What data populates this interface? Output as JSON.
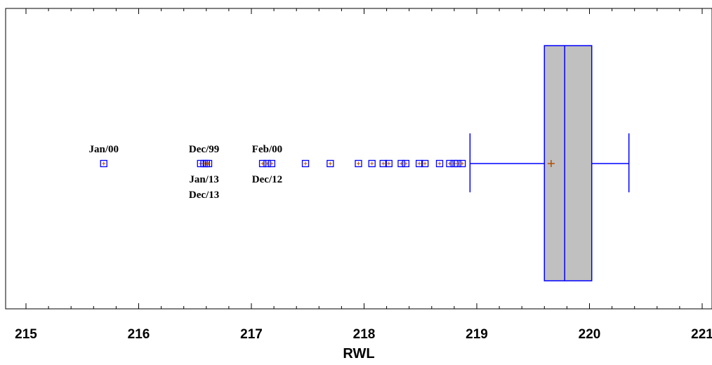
{
  "chart_data": {
    "type": "box",
    "variable": "RWL",
    "xlabel": "RWL",
    "xlim": [
      214.8,
      221.05
    ],
    "ticks": [
      215,
      216,
      217,
      218,
      219,
      220,
      221
    ],
    "tick_labels": [
      "215",
      "216",
      "217",
      "218",
      "219",
      "220",
      "221"
    ],
    "box": {
      "q1": 219.6,
      "median": 219.78,
      "q3": 220.02,
      "mean": 219.66,
      "whisker_low": 218.94,
      "whisker_high": 220.35
    },
    "outliers": [
      215.69,
      216.55,
      216.58,
      216.6,
      216.62,
      217.1,
      217.14,
      217.18,
      217.48,
      217.7,
      217.95,
      218.07,
      218.17,
      218.22,
      218.33,
      218.37,
      218.49,
      218.54,
      218.67,
      218.76,
      218.8,
      218.83,
      218.87
    ],
    "annotations": [
      {
        "text": "Jan/00",
        "x": 215.69,
        "position": "above",
        "row": 1
      },
      {
        "text": "Dec/99",
        "x": 216.58,
        "position": "above",
        "row": 1
      },
      {
        "text": "Jan/13",
        "x": 216.58,
        "position": "below",
        "row": 1
      },
      {
        "text": "Dec/13",
        "x": 216.58,
        "position": "below",
        "row": 2
      },
      {
        "text": "Feb/00",
        "x": 217.14,
        "position": "above",
        "row": 1
      },
      {
        "text": "Dec/12",
        "x": 217.14,
        "position": "below",
        "row": 1
      }
    ],
    "colors": {
      "box_fill": "#c0c0c0",
      "box_stroke": "#0000ff",
      "outlier_stroke": "#0000ff",
      "mean_marker": "#b34d00"
    }
  }
}
